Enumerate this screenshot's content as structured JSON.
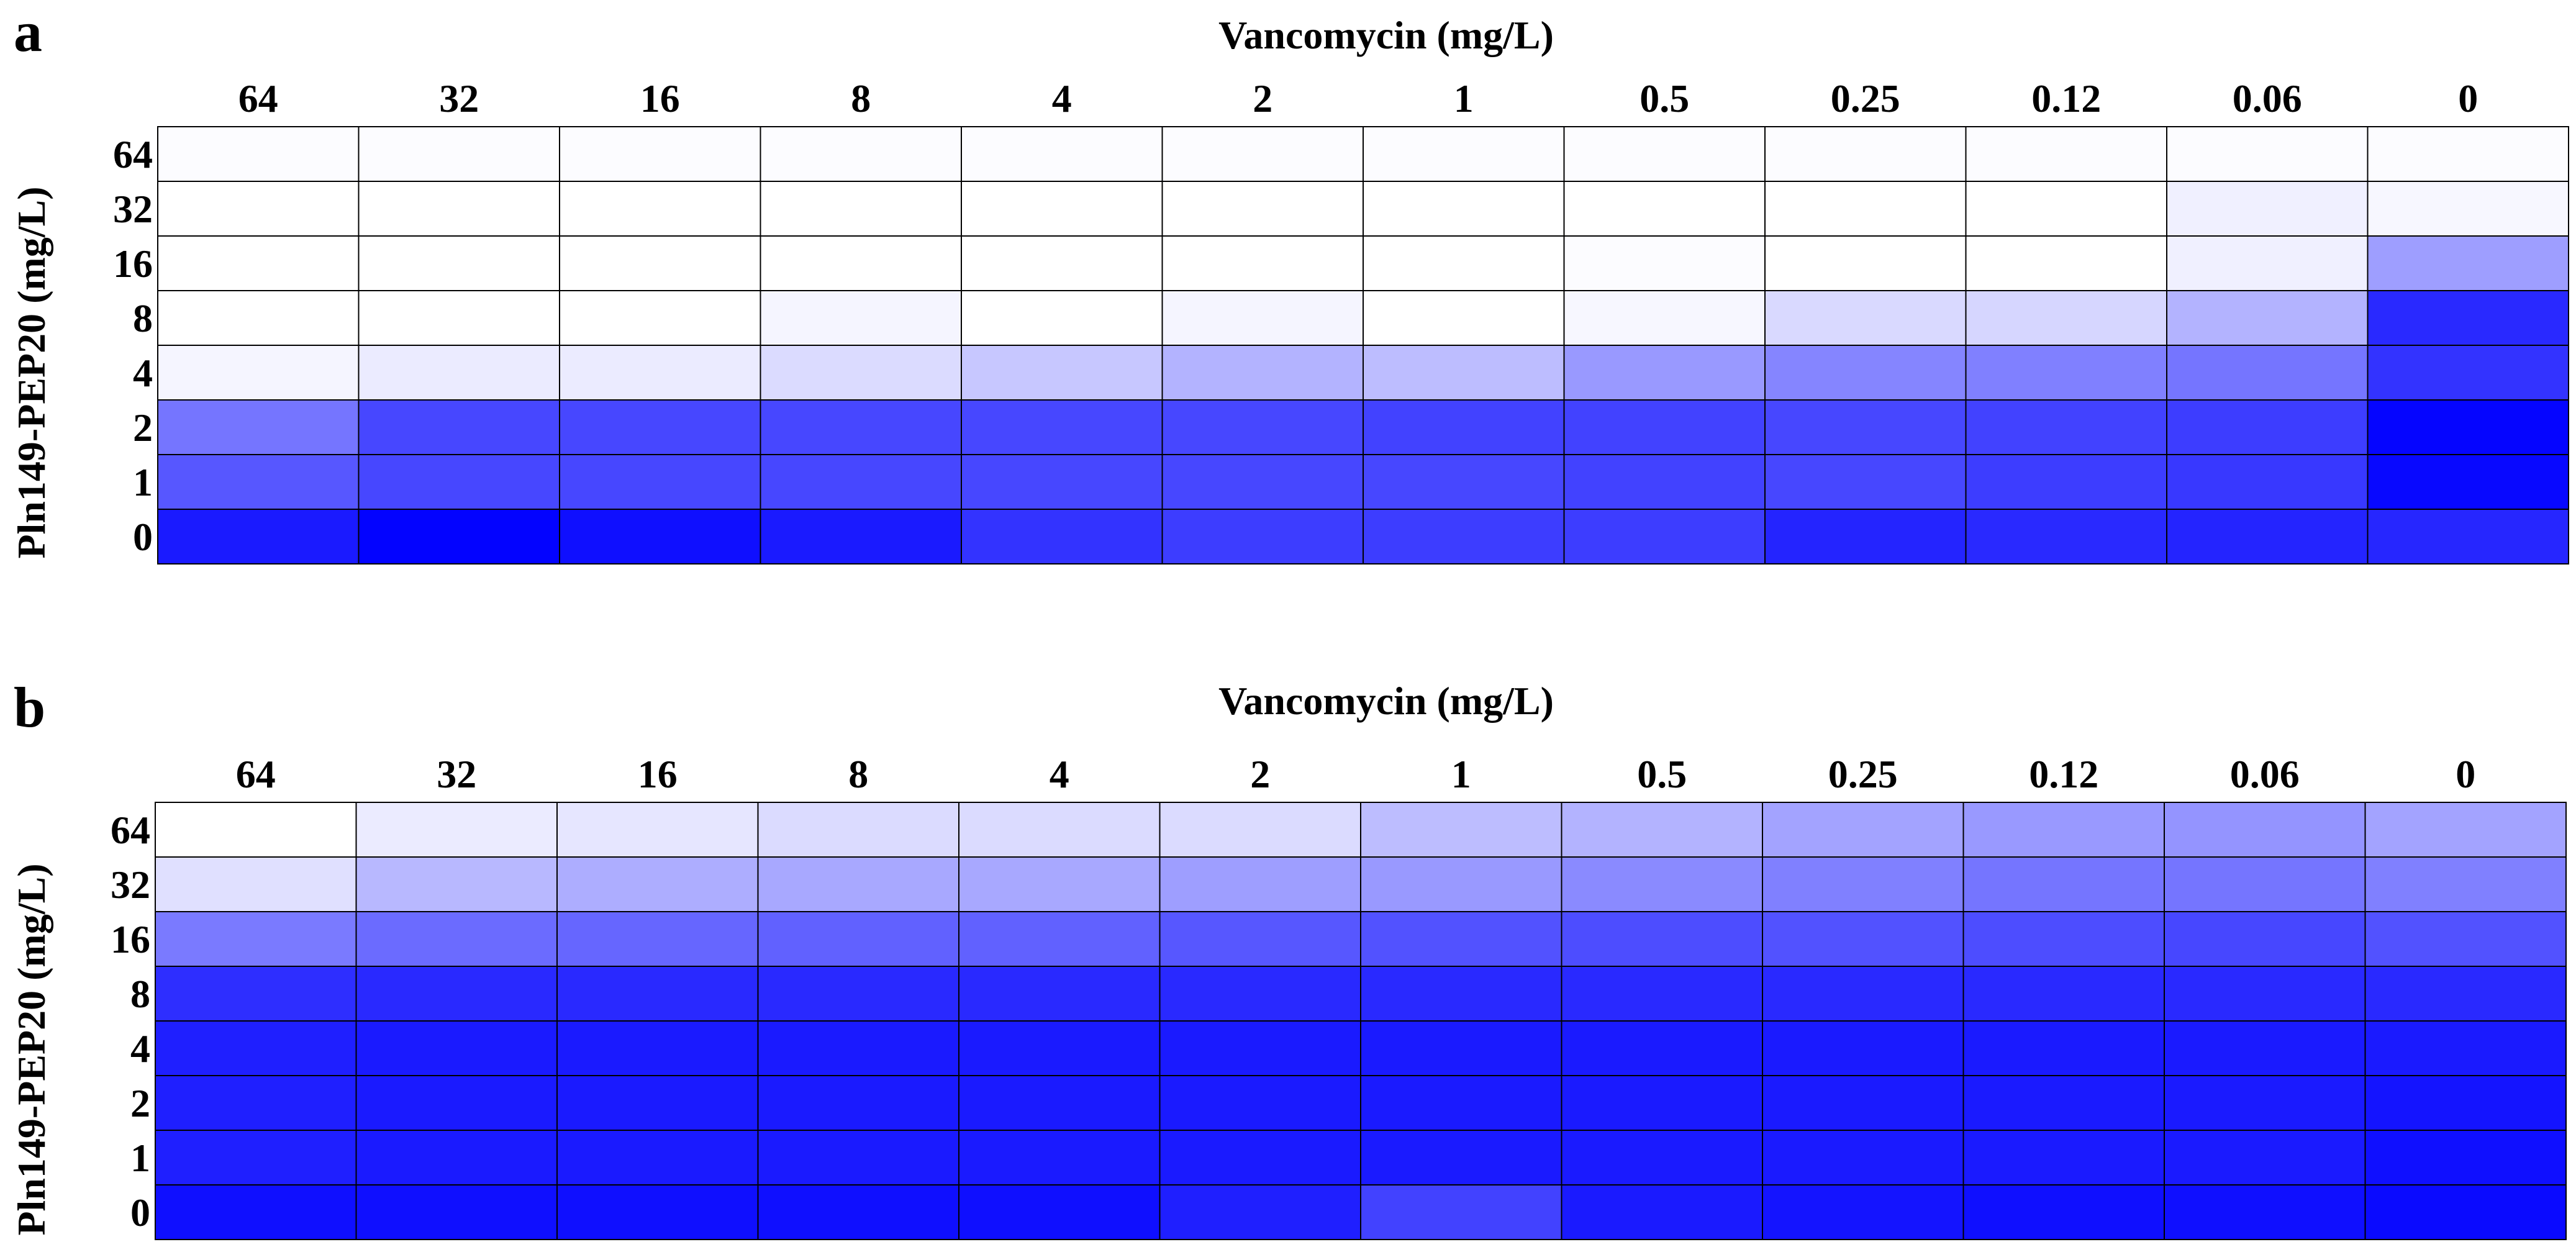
{
  "chart_data": [
    {
      "type": "heatmap",
      "panel_label": "a",
      "xlabel": "Vancomycin (mg/L)",
      "ylabel": "Pln149-PEP20 (mg/L)",
      "x_categories": [
        "64",
        "32",
        "16",
        "8",
        "4",
        "2",
        "1",
        "0.5",
        "0.25",
        "0.12",
        "0.06",
        "0"
      ],
      "y_categories": [
        "64",
        "32",
        "16",
        "8",
        "4",
        "2",
        "1",
        "0"
      ],
      "color_scale": {
        "low": "#ffffff",
        "high": "#0000ff",
        "value_range": [
          0,
          1
        ]
      },
      "values": [
        [
          0.01,
          0.01,
          0.01,
          0.01,
          0.01,
          0.01,
          0.01,
          0.01,
          0.01,
          0.01,
          0.01,
          0.01
        ],
        [
          0.0,
          0.0,
          0.0,
          0.0,
          0.0,
          0.0,
          0.0,
          0.0,
          0.0,
          0.0,
          0.06,
          0.03
        ],
        [
          0.0,
          0.0,
          0.0,
          0.0,
          0.0,
          0.0,
          0.0,
          0.01,
          0.0,
          0.0,
          0.06,
          0.38
        ],
        [
          0.0,
          0.0,
          0.0,
          0.04,
          0.0,
          0.04,
          0.0,
          0.03,
          0.15,
          0.16,
          0.3,
          0.84
        ],
        [
          0.04,
          0.08,
          0.08,
          0.14,
          0.22,
          0.3,
          0.26,
          0.4,
          0.48,
          0.5,
          0.54,
          0.8
        ],
        [
          0.54,
          0.72,
          0.72,
          0.72,
          0.72,
          0.72,
          0.74,
          0.74,
          0.72,
          0.74,
          0.76,
          0.98
        ],
        [
          0.66,
          0.72,
          0.72,
          0.72,
          0.72,
          0.72,
          0.72,
          0.74,
          0.72,
          0.76,
          0.78,
          0.97
        ],
        [
          0.9,
          0.99,
          0.94,
          0.9,
          0.8,
          0.76,
          0.76,
          0.76,
          0.86,
          0.84,
          0.86,
          0.85
        ]
      ]
    },
    {
      "type": "heatmap",
      "panel_label": "b",
      "xlabel": "Vancomycin (mg/L)",
      "ylabel": "Pln149-PEP20 (mg/L)",
      "x_categories": [
        "64",
        "32",
        "16",
        "8",
        "4",
        "2",
        "1",
        "0.5",
        "0.25",
        "0.12",
        "0.06",
        "0"
      ],
      "y_categories": [
        "64",
        "32",
        "16",
        "8",
        "4",
        "2",
        "1",
        "0"
      ],
      "color_scale": {
        "low": "#ffffff",
        "high": "#0000ff",
        "value_range": [
          0,
          1
        ]
      },
      "values": [
        [
          0.0,
          0.08,
          0.1,
          0.14,
          0.14,
          0.14,
          0.26,
          0.3,
          0.36,
          0.4,
          0.42,
          0.36
        ],
        [
          0.12,
          0.28,
          0.32,
          0.34,
          0.34,
          0.38,
          0.4,
          0.46,
          0.5,
          0.54,
          0.54,
          0.5
        ],
        [
          0.52,
          0.58,
          0.6,
          0.62,
          0.62,
          0.66,
          0.68,
          0.7,
          0.68,
          0.7,
          0.72,
          0.68
        ],
        [
          0.82,
          0.84,
          0.84,
          0.84,
          0.84,
          0.84,
          0.84,
          0.84,
          0.84,
          0.84,
          0.84,
          0.84
        ],
        [
          0.88,
          0.9,
          0.9,
          0.9,
          0.9,
          0.9,
          0.9,
          0.9,
          0.9,
          0.9,
          0.9,
          0.9
        ],
        [
          0.88,
          0.9,
          0.9,
          0.9,
          0.9,
          0.9,
          0.9,
          0.9,
          0.9,
          0.9,
          0.9,
          0.92
        ],
        [
          0.88,
          0.9,
          0.9,
          0.9,
          0.9,
          0.9,
          0.9,
          0.9,
          0.9,
          0.9,
          0.9,
          0.94
        ],
        [
          0.94,
          0.94,
          0.94,
          0.94,
          0.94,
          0.88,
          0.74,
          0.9,
          0.92,
          0.94,
          0.94,
          0.96
        ]
      ]
    }
  ]
}
